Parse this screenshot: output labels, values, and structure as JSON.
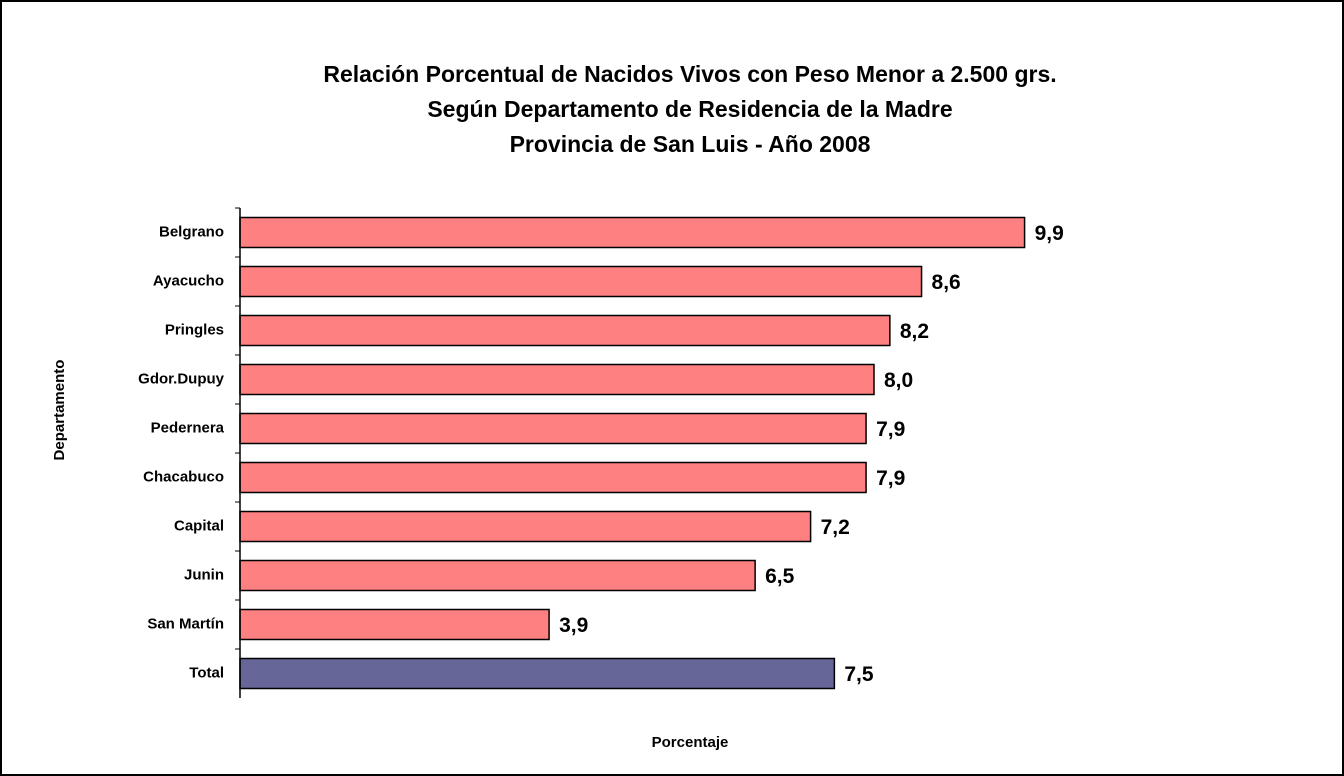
{
  "chart_data": {
    "type": "barh",
    "title": [
      "Relación Porcentual de Nacidos Vivos con Peso Menor a 2.500 grs.",
      "Según Departamento de Residencia de la Madre",
      "Provincia de San Luis - Año 2008"
    ],
    "x_label": "Porcentaje",
    "y_label": "Departamento",
    "categories": [
      "Belgrano",
      "Ayacucho",
      "Pringles",
      "Gdor.Dupuy",
      "Pedernera",
      "Chacabuco",
      "Capital",
      "Junin",
      "San Martín",
      "Total"
    ],
    "values": [
      9.9,
      8.6,
      8.2,
      8.0,
      7.9,
      7.9,
      7.2,
      6.5,
      3.9,
      7.5
    ],
    "value_labels": [
      "9,9",
      "8,6",
      "8,2",
      "8,0",
      "7,9",
      "7,9",
      "7,2",
      "6,5",
      "3,9",
      "7,5"
    ],
    "colors": [
      "#ff8080",
      "#ff8080",
      "#ff8080",
      "#ff8080",
      "#ff8080",
      "#ff8080",
      "#ff8080",
      "#ff8080",
      "#ff8080",
      "#666699"
    ],
    "xlim": [
      0,
      12
    ]
  }
}
